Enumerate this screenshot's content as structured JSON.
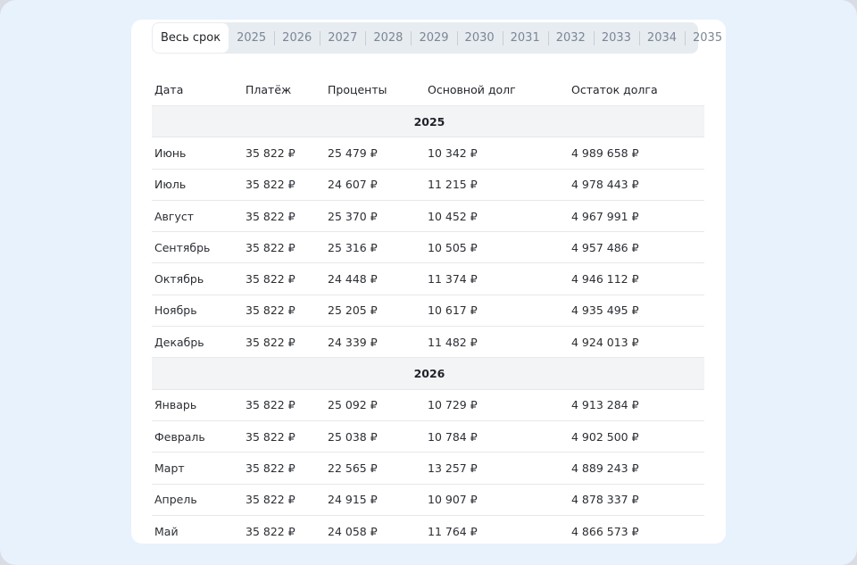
{
  "tabs": [
    "Весь срок",
    "2025",
    "2026",
    "2027",
    "2028",
    "2029",
    "2030",
    "2031",
    "2032",
    "2033",
    "2034",
    "2035"
  ],
  "active_tab": 0,
  "columns": [
    "Дата",
    "Платёж",
    "Проценты",
    "Основной долг",
    "Остаток долга"
  ],
  "groups": [
    {
      "year": "2025",
      "rows": [
        [
          "Июнь",
          "35 822 ₽",
          "25 479 ₽",
          "10 342 ₽",
          "4 989 658 ₽"
        ],
        [
          "Июль",
          "35 822 ₽",
          "24 607 ₽",
          "11 215 ₽",
          "4 978 443 ₽"
        ],
        [
          "Август",
          "35 822 ₽",
          "25 370 ₽",
          "10 452 ₽",
          "4 967 991 ₽"
        ],
        [
          "Сентябрь",
          "35 822 ₽",
          "25 316 ₽",
          "10 505 ₽",
          "4 957 486 ₽"
        ],
        [
          "Октябрь",
          "35 822 ₽",
          "24 448 ₽",
          "11 374 ₽",
          "4 946 112 ₽"
        ],
        [
          "Ноябрь",
          "35 822 ₽",
          "25 205 ₽",
          "10 617 ₽",
          "4 935 495 ₽"
        ],
        [
          "Декабрь",
          "35 822 ₽",
          "24 339 ₽",
          "11 482 ₽",
          "4 924 013 ₽"
        ]
      ]
    },
    {
      "year": "2026",
      "rows": [
        [
          "Январь",
          "35 822 ₽",
          "25 092 ₽",
          "10 729 ₽",
          "4 913 284 ₽"
        ],
        [
          "Февраль",
          "35 822 ₽",
          "25 038 ₽",
          "10 784 ₽",
          "4 902 500 ₽"
        ],
        [
          "Март",
          "35 822 ₽",
          "22 565 ₽",
          "13 257 ₽",
          "4 889 243 ₽"
        ],
        [
          "Апрель",
          "35 822 ₽",
          "24 915 ₽",
          "10 907 ₽",
          "4 878 337 ₽"
        ],
        [
          "Май",
          "35 822 ₽",
          "24 058 ₽",
          "11 764 ₽",
          "4 866 573 ₽"
        ]
      ]
    }
  ]
}
